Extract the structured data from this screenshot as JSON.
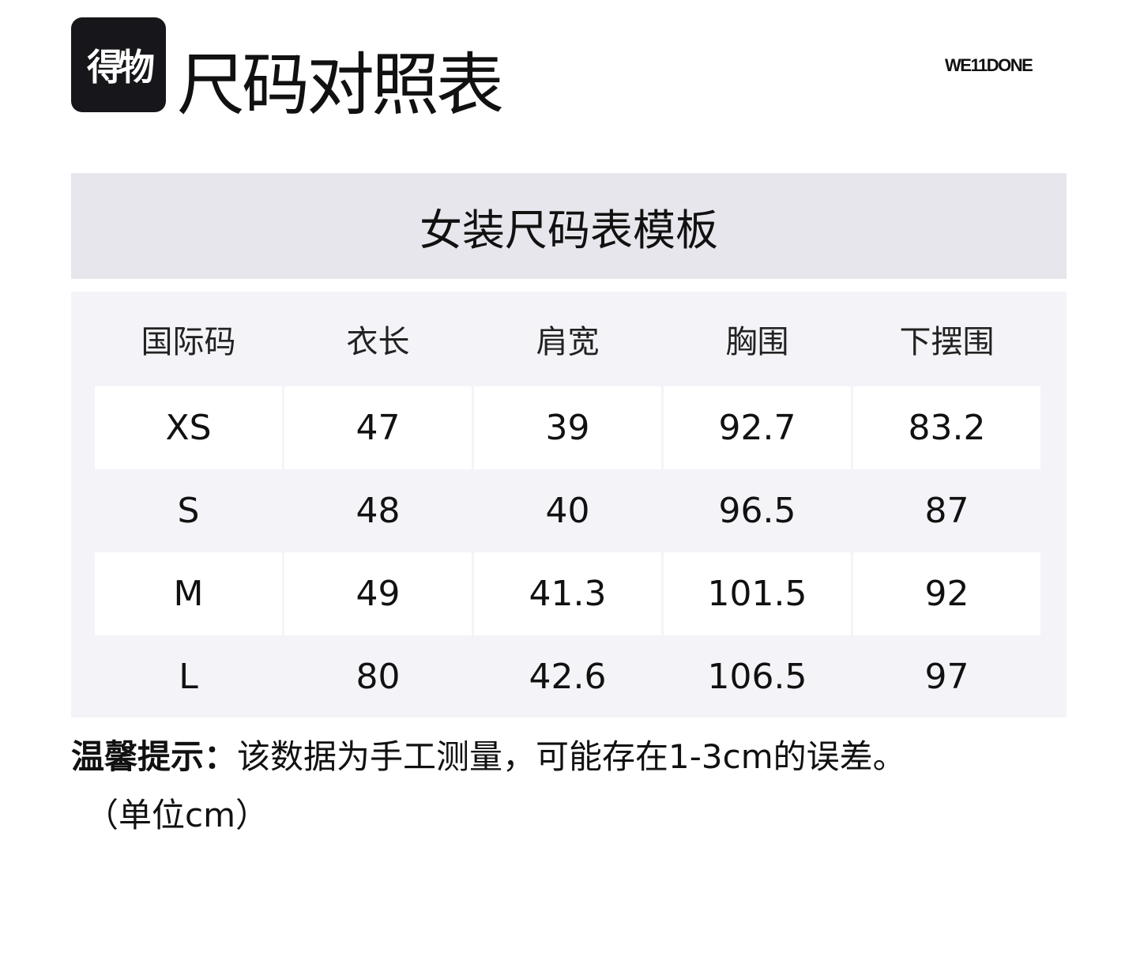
{
  "logo": "得物",
  "title": "尺码对照表",
  "brand": "WE11DONE",
  "table_title": "女装尺码表模板",
  "headers": [
    "国际码",
    "衣长",
    "肩宽",
    "胸围",
    "下摆围"
  ],
  "rows": [
    [
      "XS",
      "47",
      "39",
      "92.7",
      "83.2"
    ],
    [
      "S",
      "48",
      "40",
      "96.5",
      "87"
    ],
    [
      "M",
      "49",
      "41.3",
      "101.5",
      "92"
    ],
    [
      "L",
      "80",
      "42.6",
      "106.5",
      "97"
    ]
  ],
  "note_label": "温馨提示：",
  "note_text": "该数据为手工测量，可能存在1-3cm的误差。",
  "unit": "（单位cm）"
}
